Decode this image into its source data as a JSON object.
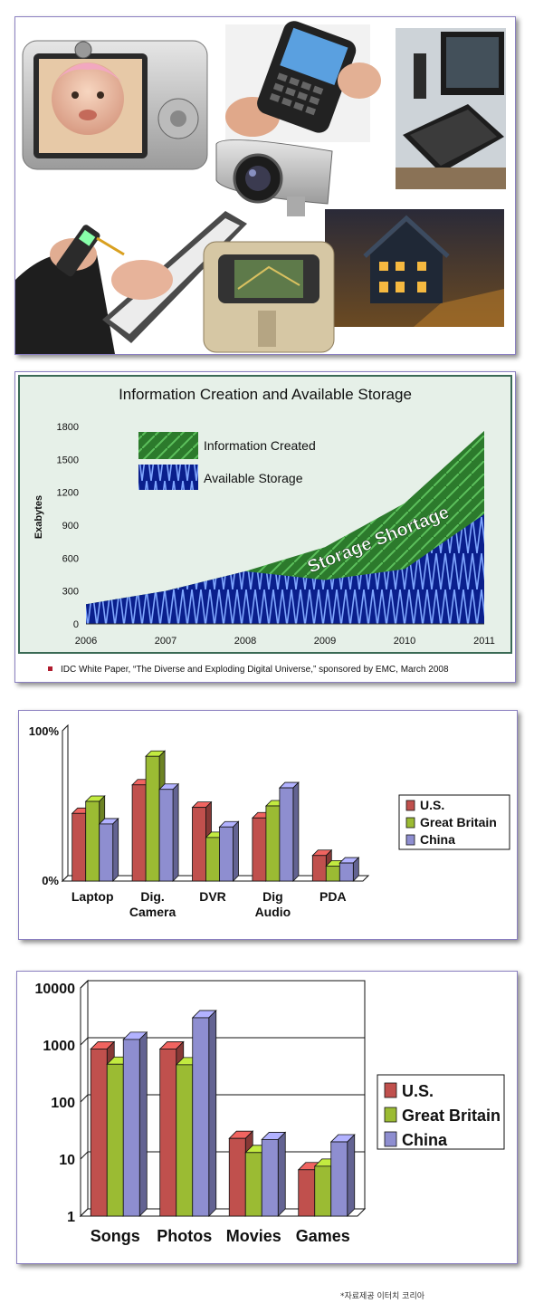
{
  "collage": {
    "photos": [
      "camera",
      "smartphone",
      "computer",
      "security-camera",
      "phone-and-clipboard",
      "car-navigation",
      "house"
    ]
  },
  "chart_data": [
    {
      "type": "area",
      "title": "Information Creation and Available Storage",
      "xlabel": "",
      "ylabel": "Exabytes",
      "x": [
        2006,
        2007,
        2008,
        2009,
        2010,
        2011
      ],
      "ylim": [
        0,
        1800
      ],
      "yticks": [
        0,
        300,
        600,
        900,
        1200,
        1500,
        1800
      ],
      "series": [
        {
          "name": "Information Created",
          "values": [
            180,
            300,
            480,
            700,
            1100,
            1760
          ],
          "color": "#2e7d2e"
        },
        {
          "name": "Available Storage",
          "values": [
            180,
            300,
            480,
            400,
            500,
            1000
          ],
          "color": "#1a3cc8"
        }
      ],
      "annotation": "Storage Shortage",
      "source": "IDC White Paper, “The Diverse and Exploding Digital Universe,” sponsored by EMC, March 2008",
      "legend_position": "top-left",
      "grid": false
    },
    {
      "type": "bar",
      "categories": [
        "Laptop",
        "Dig. Camera",
        "DVR",
        "Dig Audio",
        "PDA"
      ],
      "yticks": [
        "0%",
        "100%"
      ],
      "ylim": [
        0,
        100
      ],
      "series": [
        {
          "name": "U.S.",
          "values": [
            45,
            64,
            49,
            42,
            17
          ],
          "color": "#c0504d"
        },
        {
          "name": "Great Britain",
          "values": [
            53,
            83,
            29,
            50,
            10
          ],
          "color": "#9bbb33"
        },
        {
          "name": "China",
          "values": [
            38,
            61,
            36,
            62,
            12
          ],
          "color": "#8e8ed0"
        }
      ],
      "legend_position": "right",
      "grid": false
    },
    {
      "type": "bar",
      "scale": "log",
      "categories": [
        "Songs",
        "Photos",
        "Movies",
        "Games"
      ],
      "yticks": [
        "1",
        "10",
        "100",
        "1000",
        "10000"
      ],
      "ylim": [
        1,
        10000
      ],
      "series": [
        {
          "name": "U.S.",
          "values": [
            850,
            850,
            23,
            6.5
          ],
          "color": "#c0504d"
        },
        {
          "name": "Great Britain",
          "values": [
            460,
            450,
            13,
            7.5
          ],
          "color": "#9bbb33"
        },
        {
          "name": "China",
          "values": [
            1250,
            3000,
            22,
            20
          ],
          "color": "#8e8ed0"
        }
      ],
      "legend_position": "right",
      "grid": true
    }
  ],
  "footer": "*자료제공 이터치 코리아"
}
